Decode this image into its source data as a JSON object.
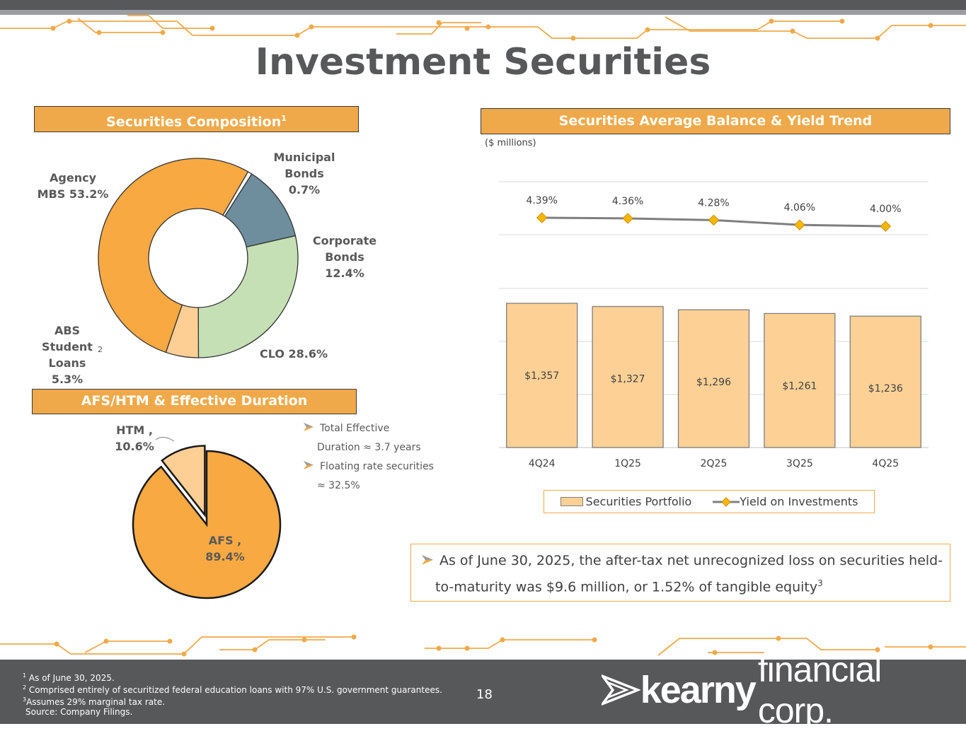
{
  "page": {
    "title": "Investment Securities",
    "page_number": "18"
  },
  "composition": {
    "header": "Securities Composition",
    "header_sup": "1",
    "labels": {
      "agency_line1": "Agency",
      "agency_line2": "MBS 53.2%",
      "muni_line1": "Municipal",
      "muni_line2": "Bonds",
      "muni_line3": "0.7%",
      "corp_line1": "Corporate",
      "corp_line2": "Bonds",
      "corp_line3": "12.4%",
      "clo": "CLO 28.6%",
      "abs_line1": "ABS",
      "abs_line2": "Student",
      "abs_line3": "Loans",
      "abs_line4": "5.3%",
      "abs_sup": "2"
    }
  },
  "duration": {
    "header": "AFS/HTM & Effective Duration",
    "htm_line1": "HTM ,",
    "htm_line2": "10.6%",
    "afs_line1": "AFS ,",
    "afs_line2": "89.4%",
    "bullet1_line1": "Total Effective",
    "bullet1_line2": "Duration ≈ 3.7 years",
    "bullet2_line1": "Floating rate securities",
    "bullet2_line2": "≈ 32.5%"
  },
  "trend": {
    "header": "Securities Average Balance & Yield Trend",
    "units": "($ millions)",
    "legend_bar": "Securities Portfolio",
    "legend_line": "Yield on Investments"
  },
  "note": {
    "line1": "As of June 30, 2025, the after-tax net unrecognized loss on securities held-",
    "line2": "to-maturity was $9.6 million, or 1.52% of tangible equity",
    "sup": "3"
  },
  "footer": {
    "note1_sup": "1",
    "note1": "As of June 30, 2025.",
    "note2_sup": "2",
    "note2": "Comprised entirely of securitized federal education loans with 97% U.S. government guarantees.",
    "note3_sup": "3",
    "note3": "Assumes 29% marginal tax rate.",
    "source": "Source: Company Filings.",
    "logo_bold": "kearny",
    "logo_light": "financial corp."
  },
  "colors": {
    "accent": "#f0a94a",
    "agency": "#f9a942",
    "corporate": "#6e8e9e",
    "clo": "#c5e0b4",
    "abs": "#fdcf95",
    "bars": "#fdd196",
    "yield_marker": "#f5b800",
    "yield_line": "#7f7f7f"
  },
  "chart_data": [
    {
      "type": "pie",
      "title": "Securities Composition",
      "categories": [
        "Agency MBS",
        "Municipal Bonds",
        "Corporate Bonds",
        "CLO",
        "ABS Student Loans"
      ],
      "values": [
        53.2,
        0.7,
        12.4,
        28.6,
        5.3
      ],
      "unit": "%"
    },
    {
      "type": "pie",
      "title": "AFS/HTM & Effective Duration",
      "categories": [
        "AFS",
        "HTM"
      ],
      "values": [
        89.4,
        10.6
      ],
      "unit": "%"
    },
    {
      "type": "bar",
      "title": "Securities Average Balance & Yield Trend",
      "categories": [
        "4Q24",
        "1Q25",
        "2Q25",
        "3Q25",
        "4Q25"
      ],
      "series": [
        {
          "name": "Securities Portfolio",
          "type": "bar",
          "values": [
            1357,
            1327,
            1296,
            1261,
            1236
          ],
          "labels": [
            "$1,357",
            "$1,327",
            "$1,296",
            "$1,261",
            "$1,236"
          ]
        },
        {
          "name": "Yield on Investments",
          "type": "line",
          "values": [
            4.39,
            4.36,
            4.28,
            4.06,
            4.0
          ],
          "labels": [
            "4.39%",
            "4.36%",
            "4.28%",
            "4.06%",
            "4.00%"
          ]
        }
      ],
      "legend": "bottom",
      "grid": true
    }
  ]
}
